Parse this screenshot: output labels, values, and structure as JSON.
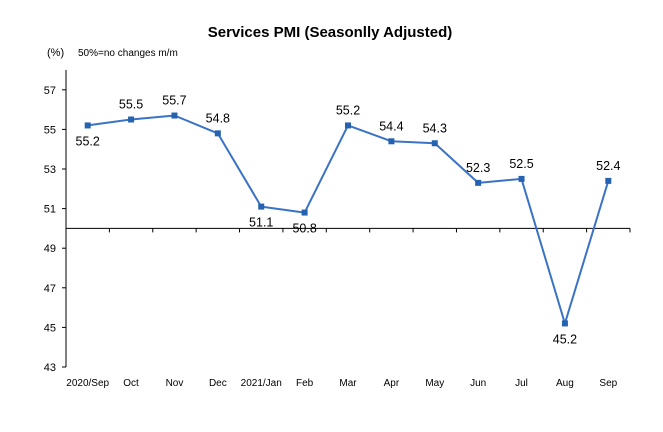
{
  "chart_data": {
    "type": "line",
    "title": "Services PMI (Seasonlly Adjusted)",
    "unit_label": "(%)",
    "note": "50%=no changes  m/m",
    "categories": [
      "2020/Sep",
      "Oct",
      "Nov",
      "Dec",
      "2021/Jan",
      "Feb",
      "Mar",
      "Apr",
      "May",
      "Jun",
      "Jul",
      "Aug",
      "Sep"
    ],
    "series": [
      {
        "values": [
          55.2,
          55.5,
          55.7,
          54.8,
          51.1,
          50.8,
          55.2,
          54.4,
          54.3,
          52.3,
          52.5,
          45.2,
          52.4
        ]
      }
    ],
    "value_labels": [
      "55.2",
      "55.5",
      "55.7",
      "54.8",
      "51.1",
      "50.8",
      "55.2",
      "54.4",
      "54.3",
      "52.3",
      "52.5",
      "45.2",
      "52.4"
    ],
    "label_position": [
      "below",
      "above",
      "above",
      "above",
      "below",
      "below",
      "above",
      "above",
      "above",
      "above",
      "above",
      "below",
      "above"
    ],
    "yticks": [
      "43",
      "45",
      "47",
      "49",
      "51",
      "53",
      "55",
      "57"
    ],
    "ylim": [
      43,
      58
    ],
    "baseline": 50,
    "grid": false,
    "colors": {
      "line": "#3a73c6",
      "marker": "#2563b0",
      "axis": "#000000"
    }
  }
}
